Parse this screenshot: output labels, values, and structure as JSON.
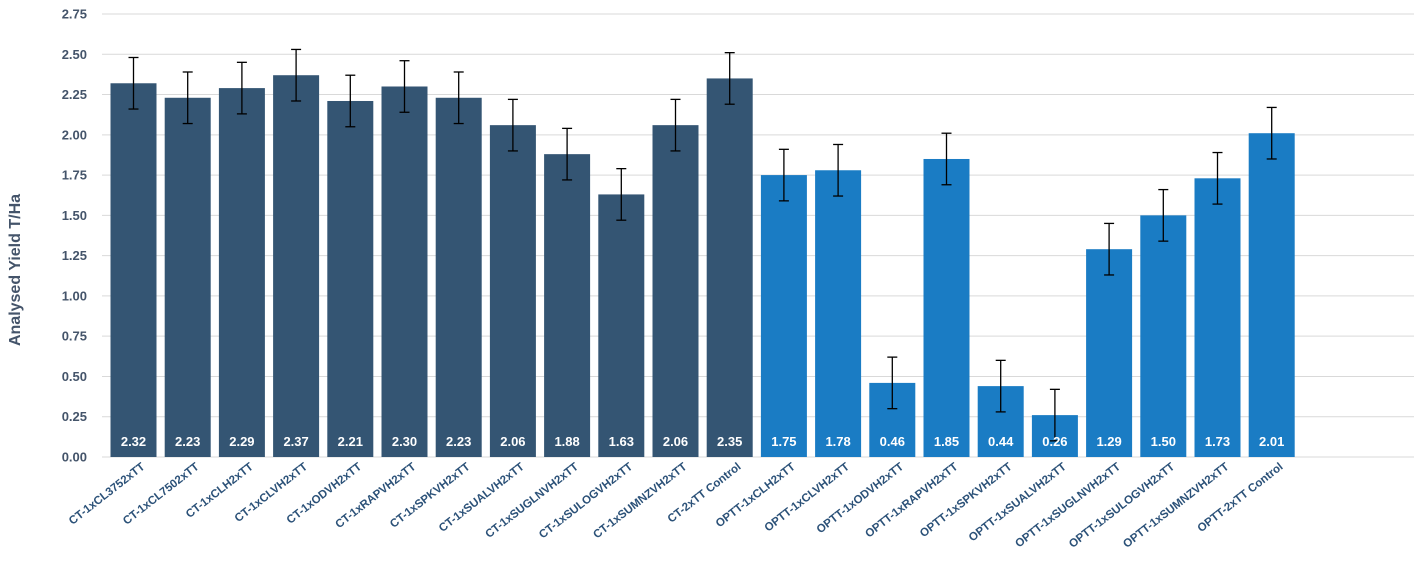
{
  "chart_data": {
    "type": "bar",
    "title": "",
    "xlabel": "",
    "ylabel": "Analysed Yield T/Ha",
    "ylim": [
      0,
      2.75
    ],
    "yticks": [
      "0.00",
      "0.25",
      "0.50",
      "0.75",
      "1.00",
      "1.25",
      "1.50",
      "1.75",
      "2.00",
      "2.25",
      "2.50",
      "2.75"
    ],
    "grid": true,
    "legend": "none",
    "categories": [
      "CT-1xCL3752xTT",
      "CT-1xCL7502xTT",
      "CT-1xCLH2xTT",
      "CT-1xCLVH2xTT",
      "CT-1xODVH2xTT",
      "CT-1xRAPVH2xTT",
      "CT-1xSPKVH2xTT",
      "CT-1xSUALVH2xTT",
      "CT-1xSUGLNVH2xTT",
      "CT-1xSULOGVH2xTT",
      "CT-1xSUMNZVH2xTT",
      "CT-2xTT Control",
      "OPTT-1xCLH2xTT",
      "OPTT-1xCLVH2xTT",
      "OPTT-1xODVH2xTT",
      "OPTT-1xRAPVH2xTT",
      "OPTT-1xSPKVH2xTT",
      "OPTT-1xSUALVH2xTT",
      "OPTT-1xSUGLNVH2xTT",
      "OPTT-1xSULOGVH2xTT",
      "OPTT-1xSUMNZVH2xTT",
      "OPTT-2xTT Control"
    ],
    "values": [
      2.32,
      2.23,
      2.29,
      2.37,
      2.21,
      2.3,
      2.23,
      2.06,
      1.88,
      1.63,
      2.06,
      2.35,
      1.75,
      1.78,
      0.46,
      1.85,
      0.44,
      0.26,
      1.29,
      1.5,
      1.73,
      2.01
    ],
    "value_labels": [
      "2.32",
      "2.23",
      "2.29",
      "2.37",
      "2.21",
      "2.30",
      "2.23",
      "2.06",
      "1.88",
      "1.63",
      "2.06",
      "2.35",
      "1.75",
      "1.78",
      "0.46",
      "1.85",
      "0.44",
      "0.26",
      "1.29",
      "1.50",
      "1.73",
      "2.01"
    ],
    "error_bar": 0.16,
    "colors": [
      "#345573",
      "#345573",
      "#345573",
      "#345573",
      "#345573",
      "#345573",
      "#345573",
      "#345573",
      "#345573",
      "#345573",
      "#345573",
      "#345573",
      "#1a7cc4",
      "#1a7cc4",
      "#1a7cc4",
      "#1a7cc4",
      "#1a7cc4",
      "#1a7cc4",
      "#1a7cc4",
      "#1a7cc4",
      "#1a7cc4",
      "#1a7cc4"
    ],
    "axis_text_color": "#44546a",
    "category_text_color": "#2b5178"
  }
}
